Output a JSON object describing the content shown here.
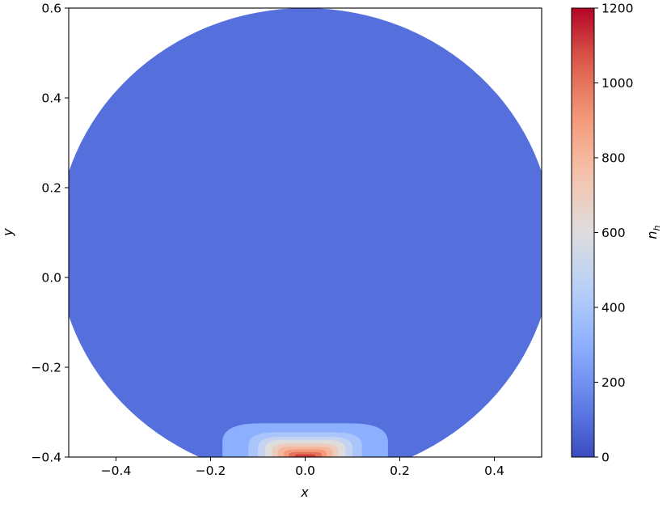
{
  "chart_data": {
    "type": "heatmap",
    "title": "",
    "xlabel": "x",
    "ylabel": "y",
    "xlim": [
      -0.5,
      0.5
    ],
    "ylim": [
      -0.4,
      0.6
    ],
    "xticks": [
      -0.4,
      -0.2,
      0.0,
      0.2,
      0.4
    ],
    "yticks": [
      -0.4,
      -0.2,
      0.0,
      0.2,
      0.4,
      0.6
    ],
    "xtick_labels": [
      "−0.4",
      "−0.2",
      "0.0",
      "0.2",
      "0.4"
    ],
    "ytick_labels": [
      "−0.4",
      "−0.2",
      "0.0",
      "0.2",
      "0.4",
      "0.6"
    ],
    "grid": false,
    "colormap": "coolwarm",
    "colorbar": {
      "label_base": "n",
      "label_subscript": "h",
      "range": [
        0,
        1200
      ],
      "ticks": [
        0,
        200,
        400,
        600,
        800,
        1000,
        1200
      ],
      "tick_labels": [
        "0",
        "200",
        "400",
        "600",
        "800",
        "1000",
        "1200"
      ]
    },
    "domain": {
      "shape": "disk",
      "center": [
        0.0,
        0.075
      ],
      "radius": 0.525
    },
    "field": {
      "background_value": 100,
      "peak_location": [
        0.0,
        -0.4
      ],
      "contour_levels": [
        {
          "value": 300,
          "x_halfwidth": 0.175,
          "y_top": -0.325
        },
        {
          "value": 400,
          "x_halfwidth": 0.12,
          "y_top": -0.345
        },
        {
          "value": 500,
          "x_halfwidth": 0.1,
          "y_top": -0.355
        },
        {
          "value": 600,
          "x_halfwidth": 0.085,
          "y_top": -0.362
        },
        {
          "value": 700,
          "x_halfwidth": 0.07,
          "y_top": -0.37
        },
        {
          "value": 800,
          "x_halfwidth": 0.058,
          "y_top": -0.377
        },
        {
          "value": 900,
          "x_halfwidth": 0.045,
          "y_top": -0.383
        },
        {
          "value": 1000,
          "x_halfwidth": 0.035,
          "y_top": -0.389
        },
        {
          "value": 1100,
          "x_halfwidth": 0.022,
          "y_top": -0.394
        }
      ]
    }
  }
}
